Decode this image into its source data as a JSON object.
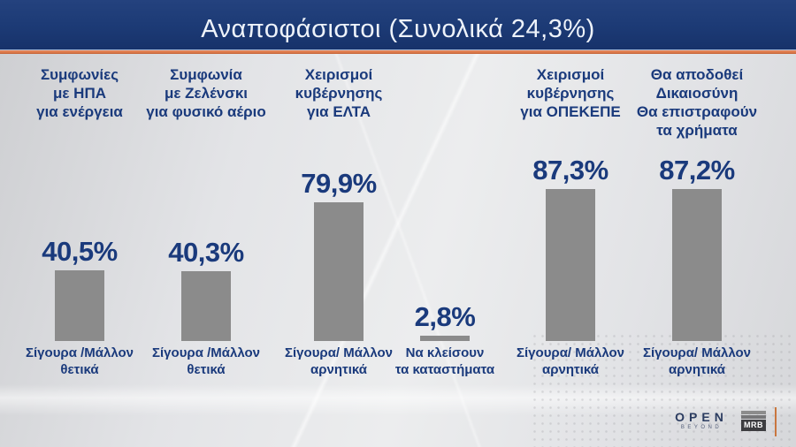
{
  "header": {
    "title": "Αναποφάσιστοι (Συνολικά 24,3%)"
  },
  "chart_data": {
    "type": "bar",
    "unit": "%",
    "title": "Αναποφάσιστοι (Συνολικά 24,3%)",
    "ylim": [
      0,
      100
    ],
    "grid": false,
    "bar_color": "#8b8b8b",
    "value_color": "#1a3a7c",
    "bars": [
      {
        "topic_lines": [
          "Συμφωνίες",
          "με ΗΠΑ",
          "για ενέργεια"
        ],
        "value": 40.5,
        "value_label": "40,5%",
        "caption_lines": [
          "Σίγουρα /Μάλλον",
          "θετικά"
        ]
      },
      {
        "topic_lines": [
          "Συμφωνία",
          "με Ζελένσκι",
          "για φυσικό αέριο"
        ],
        "value": 40.3,
        "value_label": "40,3%",
        "caption_lines": [
          "Σίγουρα /Μάλλον",
          "θετικά"
        ]
      },
      {
        "topic_lines": [
          "Χειρισμοί",
          "κυβέρνησης",
          "για ΕΛΤΑ"
        ],
        "value": 79.9,
        "value_label": "79,9%",
        "caption_lines": [
          "Σίγουρα/ Μάλλον",
          "αρνητικά"
        ]
      },
      {
        "topic_lines": [],
        "value": 2.8,
        "value_label": "2,8%",
        "caption_lines": [
          "Να κλείσουν",
          "τα καταστήματα"
        ]
      },
      {
        "topic_lines": [
          "Χειρισμοί",
          "κυβέρνησης",
          "για ΟΠΕΚΕΠΕ"
        ],
        "value": 87.3,
        "value_label": "87,3%",
        "caption_lines": [
          "Σίγουρα/ Μάλλον",
          "αρνητικά"
        ]
      },
      {
        "topic_lines": [
          "Θα αποδοθεί",
          "Δικαιοσύνη",
          "Θα επιστραφούν",
          "τα χρήματα"
        ],
        "value": 87.2,
        "value_label": "87,2%",
        "caption_lines": [
          "Σίγουρα/ Μάλλον",
          "αρνητικά"
        ]
      }
    ]
  },
  "footer": {
    "open_logo": {
      "text": "OPEN",
      "subtext": "BEYOND"
    },
    "mrb_logo": {
      "text": "MRB"
    }
  },
  "colors": {
    "banner_bg": "#1c3a75",
    "banner_underline": "#dd7a4c",
    "title_text": "#eef3fa",
    "navy_text": "#1a3a7c",
    "bar_gray": "#8b8b8b",
    "background": "#e2e3e6"
  }
}
